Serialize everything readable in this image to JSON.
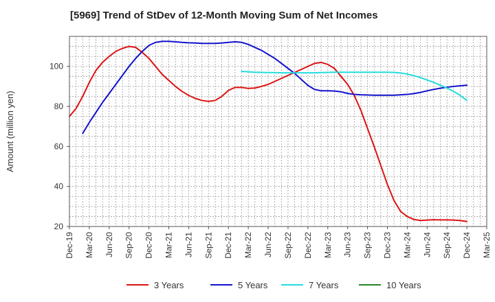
{
  "chart_data": {
    "type": "line",
    "title": "[5969]  Trend of StDev of 12-Month Moving Sum of Net Incomes",
    "xlabel": "",
    "ylabel": "Amount (million yen)",
    "ylim": [
      20,
      115
    ],
    "yticks": [
      20,
      40,
      60,
      80,
      100
    ],
    "xticks": [
      "Dec-19",
      "Mar-20",
      "Jun-20",
      "Sep-20",
      "Dec-20",
      "Mar-21",
      "Jun-21",
      "Sep-21",
      "Dec-21",
      "Mar-22",
      "Jun-22",
      "Sep-22",
      "Dec-22",
      "Mar-23",
      "Jun-23",
      "Sep-23",
      "Dec-23",
      "Mar-24",
      "Jun-24",
      "Sep-24",
      "Dec-24",
      "Mar-25"
    ],
    "grid": true,
    "legend_position": "bottom",
    "series": [
      {
        "name": "3 Years",
        "color": "#dd1111",
        "x": [
          "Dec-19",
          "Jan-20",
          "Feb-20",
          "Mar-20",
          "Apr-20",
          "May-20",
          "Jun-20",
          "Jul-20",
          "Aug-20",
          "Sep-20",
          "Oct-20",
          "Nov-20",
          "Dec-20",
          "Jan-21",
          "Feb-21",
          "Mar-21",
          "Apr-21",
          "May-21",
          "Jun-21",
          "Jul-21",
          "Aug-21",
          "Sep-21",
          "Oct-21",
          "Nov-21",
          "Dec-21",
          "Jan-22",
          "Feb-22",
          "Mar-22",
          "Apr-22",
          "May-22",
          "Jun-22",
          "Jul-22",
          "Aug-22",
          "Sep-22",
          "Oct-22",
          "Nov-22",
          "Dec-22",
          "Jan-23",
          "Feb-23",
          "Mar-23",
          "Apr-23",
          "May-23",
          "Jun-23",
          "Jul-23",
          "Aug-23",
          "Sep-23",
          "Oct-23",
          "Nov-23",
          "Dec-23",
          "Jan-24",
          "Feb-24",
          "Mar-24",
          "Apr-24",
          "May-24",
          "Jun-24",
          "Jul-24",
          "Aug-24",
          "Sep-24",
          "Oct-24",
          "Nov-24",
          "Dec-24"
        ],
        "values": [
          75,
          79,
          85,
          92,
          98,
          102,
          105,
          107.5,
          109,
          110,
          109.5,
          107,
          104,
          100,
          96,
          93,
          90,
          87.5,
          85.5,
          84,
          83,
          82.5,
          83,
          85,
          88,
          89.5,
          89.5,
          89,
          89.2,
          90,
          91,
          92.5,
          94,
          95.5,
          97,
          98.5,
          100,
          101.5,
          102,
          101,
          99,
          95,
          91,
          85.5,
          78,
          69,
          60,
          50.5,
          41,
          33,
          27.5,
          25,
          23.5,
          23,
          23.2,
          23.4,
          23.3,
          23.3,
          23.2,
          23,
          22.5
        ]
      },
      {
        "name": "5 Years",
        "color": "#1111cc",
        "x": [
          "Dec-19",
          "Jan-20",
          "Feb-20",
          "Mar-20",
          "Apr-20",
          "May-20",
          "Jun-20",
          "Jul-20",
          "Aug-20",
          "Sep-20",
          "Oct-20",
          "Nov-20",
          "Dec-20",
          "Jan-21",
          "Feb-21",
          "Mar-21",
          "Apr-21",
          "May-21",
          "Jun-21",
          "Jul-21",
          "Aug-21",
          "Sep-21",
          "Oct-21",
          "Nov-21",
          "Dec-21",
          "Jan-22",
          "Feb-22",
          "Mar-22",
          "Apr-22",
          "May-22",
          "Jun-22",
          "Jul-22",
          "Aug-22",
          "Sep-22",
          "Oct-22",
          "Nov-22",
          "Dec-22",
          "Jan-23",
          "Feb-23",
          "Mar-23",
          "Apr-23",
          "May-23",
          "Jun-23",
          "Jul-23",
          "Aug-23",
          "Sep-23",
          "Oct-23",
          "Nov-23",
          "Dec-23",
          "Jan-24",
          "Feb-24",
          "Mar-24",
          "Apr-24",
          "May-24",
          "Jun-24",
          "Jul-24",
          "Aug-24",
          "Sep-24",
          "Oct-24",
          "Nov-24",
          "Dec-24"
        ],
        "values": [
          null,
          null,
          66.5,
          72,
          77,
          82,
          86.5,
          91,
          95.5,
          100,
          104,
          107.5,
          110.5,
          112,
          112.5,
          112.5,
          112.3,
          112,
          111.8,
          111.7,
          111.5,
          111.5,
          111.5,
          111.7,
          112,
          112.3,
          112,
          111,
          109.5,
          108,
          106,
          104,
          101.5,
          99,
          96.5,
          93.5,
          90.5,
          88.5,
          87.8,
          87.8,
          87.7,
          87.3,
          86.5,
          86,
          85.8,
          85.7,
          85.6,
          85.6,
          85.6,
          85.6,
          85.8,
          86,
          86.4,
          87,
          87.8,
          88.5,
          89.1,
          89.6,
          90,
          90.3,
          90.6
        ]
      },
      {
        "name": "7 Years",
        "color": "#22dddd",
        "x": [
          "Dec-19",
          "Jan-20",
          "Feb-20",
          "Mar-20",
          "Apr-20",
          "May-20",
          "Jun-20",
          "Jul-20",
          "Aug-20",
          "Sep-20",
          "Oct-20",
          "Nov-20",
          "Dec-20",
          "Jan-21",
          "Feb-21",
          "Mar-21",
          "Apr-21",
          "May-21",
          "Jun-21",
          "Jul-21",
          "Aug-21",
          "Sep-21",
          "Oct-21",
          "Nov-21",
          "Dec-21",
          "Jan-22",
          "Feb-22",
          "Mar-22",
          "Apr-22",
          "May-22",
          "Jun-22",
          "Jul-22",
          "Aug-22",
          "Sep-22",
          "Oct-22",
          "Nov-22",
          "Dec-22",
          "Jan-23",
          "Feb-23",
          "Mar-23",
          "Apr-23",
          "May-23",
          "Jun-23",
          "Jul-23",
          "Aug-23",
          "Sep-23",
          "Oct-23",
          "Nov-23",
          "Dec-23",
          "Jan-24",
          "Feb-24",
          "Mar-24",
          "Apr-24",
          "May-24",
          "Jun-24",
          "Jul-24",
          "Aug-24",
          "Sep-24",
          "Oct-24",
          "Nov-24",
          "Dec-24"
        ],
        "values": [
          null,
          null,
          null,
          null,
          null,
          null,
          null,
          null,
          null,
          null,
          null,
          null,
          null,
          null,
          null,
          null,
          null,
          null,
          null,
          null,
          null,
          null,
          null,
          null,
          null,
          null,
          97.5,
          97.3,
          97.1,
          97,
          96.9,
          96.9,
          96.8,
          96.8,
          96.8,
          96.8,
          96.8,
          96.8,
          96.9,
          97,
          97.1,
          97.1,
          97.1,
          97.1,
          97.1,
          97.1,
          97.1,
          97.1,
          97.1,
          97,
          96.7,
          96.2,
          95.4,
          94.4,
          93.2,
          92,
          90.6,
          89.2,
          87.5,
          85.5,
          83
        ]
      },
      {
        "name": "10 Years",
        "color": "#228822",
        "x": [],
        "values": []
      }
    ]
  }
}
